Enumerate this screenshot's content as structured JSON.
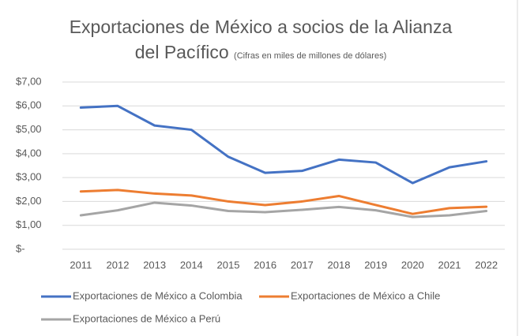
{
  "chart_data": {
    "type": "line",
    "title": "Exportaciones de México a socios de la Alianza del Pacífico",
    "subtitle": "(Cifras en miles de millones de dólares)",
    "categories": [
      "2011",
      "2012",
      "2013",
      "2014",
      "2015",
      "2016",
      "2017",
      "2018",
      "2019",
      "2020",
      "2021",
      "2022"
    ],
    "series": [
      {
        "name": "Exportaciones de México a Colombia",
        "color": "#4472c4",
        "values": [
          5.93,
          6.0,
          5.18,
          5.0,
          3.87,
          3.2,
          3.28,
          3.75,
          3.63,
          2.77,
          3.43,
          3.68
        ]
      },
      {
        "name": "Exportaciones de México a Chile",
        "color": "#ed7d31",
        "values": [
          2.42,
          2.48,
          2.33,
          2.25,
          2.0,
          1.85,
          2.0,
          2.23,
          1.85,
          1.48,
          1.72,
          1.78
        ]
      },
      {
        "name": "Exportaciones de México a Perú",
        "color": "#a5a5a5",
        "values": [
          1.42,
          1.63,
          1.95,
          1.83,
          1.6,
          1.55,
          1.65,
          1.77,
          1.63,
          1.35,
          1.42,
          1.6
        ]
      }
    ],
    "ylim": [
      0,
      7
    ],
    "yticks": [
      {
        "value": 0,
        "label": "$-"
      },
      {
        "value": 1,
        "label": "$1,00"
      },
      {
        "value": 2,
        "label": "$2,00"
      },
      {
        "value": 3,
        "label": "$3,00"
      },
      {
        "value": 4,
        "label": "$4,00"
      },
      {
        "value": 5,
        "label": "$5,00"
      },
      {
        "value": 6,
        "label": "$6,00"
      },
      {
        "value": 7,
        "label": "$7,00"
      }
    ],
    "grid": true
  }
}
